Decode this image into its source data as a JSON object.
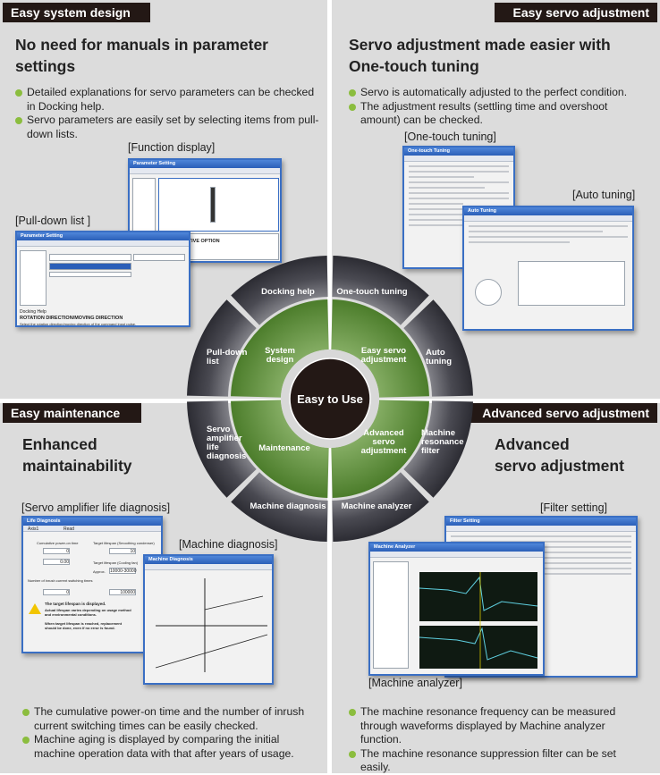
{
  "colors": {
    "header_bg": "#231815",
    "panel_bg": "#dcdcdc",
    "bullet": "#8bbd3e",
    "ring": "#45454c",
    "green": "#5a8a36",
    "center": "#231815"
  },
  "sections": {
    "system_design": {
      "header": "Easy system design",
      "heading": [
        "No need for manuals in parameter",
        "settings"
      ],
      "bullets": [
        "Detailed explanations for servo parameters can be checked in Docking help.",
        "Servo parameters are easily set by selecting items from pull-down lists."
      ],
      "captions": {
        "function_display": "[Function display]",
        "pull_down": "[Pull-down list ]"
      }
    },
    "servo_adjustment": {
      "header": "Easy servo adjustment",
      "heading": [
        "Servo adjustment made easier with",
        "One-touch tuning"
      ],
      "bullets": [
        "Servo is automatically adjusted to the perfect condition.",
        "The adjustment results (settling time and overshoot amount) can be checked."
      ],
      "captions": {
        "one_touch": "[One-touch tuning]",
        "auto_tuning": "[Auto tuning]"
      }
    },
    "maintenance": {
      "header": "Easy maintenance",
      "heading": [
        "Enhanced",
        "maintainability"
      ],
      "bullets": [
        "The cumulative power-on time and the number of inrush current switching times can be easily checked.",
        "Machine aging is displayed by comparing the initial machine operation data with that after years of usage."
      ],
      "captions": {
        "life_diagnosis": "[Servo amplifier life diagnosis]",
        "machine_diagnosis": "[Machine diagnosis]"
      }
    },
    "advanced": {
      "header": "Advanced servo adjustment",
      "heading": [
        "Advanced",
        "servo adjustment"
      ],
      "bullets": [
        "The machine resonance frequency can be measured through waveforms displayed by Machine analyzer function.",
        "The machine resonance suppression filter can be set easily."
      ],
      "captions": {
        "filter_setting": "[Filter setting]",
        "machine_analyzer": "[Machine analyzer]"
      }
    }
  },
  "wheel": {
    "center": "Easy to Use",
    "inner": [
      [
        "System",
        "design"
      ],
      [
        "Easy servo",
        "adjustment"
      ],
      [
        "Advanced",
        "servo",
        "adjustment"
      ],
      [
        "Maintenance"
      ]
    ],
    "outer": [
      [
        "Docking help"
      ],
      [
        "One-touch tuning"
      ],
      [
        "Auto",
        "tuning"
      ],
      [
        "Machine",
        "resonance",
        "filter"
      ],
      [
        "Machine analyzer"
      ],
      [
        "Machine diagnosis"
      ],
      [
        "Servo",
        "amplifier",
        "life",
        "diagnosis"
      ],
      [
        "Pull-down",
        "list"
      ]
    ]
  },
  "screens": {
    "function_display": {
      "title": "Parameter Setting",
      "docking_title": "REGENERATIVE OPTION"
    },
    "pull_down": {
      "title": "Parameter Setting",
      "docking_label": "Docking Help",
      "docking_title": "ROTATION DIRECTION/MOVING DIRECTION",
      "docking_text": "Select the rotation direction/moving direction of the command input pulse."
    },
    "one_touch": {
      "title": "One-touch Tuning"
    },
    "auto_tuning": {
      "title": "Auto Tuning"
    },
    "life_diagnosis": {
      "title": "Life Diagnosis",
      "axis": "Axis1",
      "reload": "Read",
      "cum_label": "Cumulative power-on time",
      "target_cond": "Target lifespan (Smoothing condenser)",
      "approx": "Approx.",
      "hours": "0",
      "years": "0.00",
      "cond_years": "10",
      "fan_label": "Target lifespan (Cooling fan)",
      "fan_hours": "10000-30000",
      "inrush_label": "Number of inrush current switching times",
      "inrush": "0",
      "inrush_target": "100000",
      "warn1": "The target lifespan is displayed.",
      "warn2": "Actual lifespan varies depending on usage method and environmental conditions.",
      "warn3": "When target lifespan is reached, replacement should be done, even if no error is found."
    },
    "machine_diagnosis": {
      "title": "Machine Diagnosis"
    },
    "filter_setting": {
      "title": "Filter Setting"
    },
    "machine_analyzer": {
      "title": "Machine Analyzer"
    }
  }
}
